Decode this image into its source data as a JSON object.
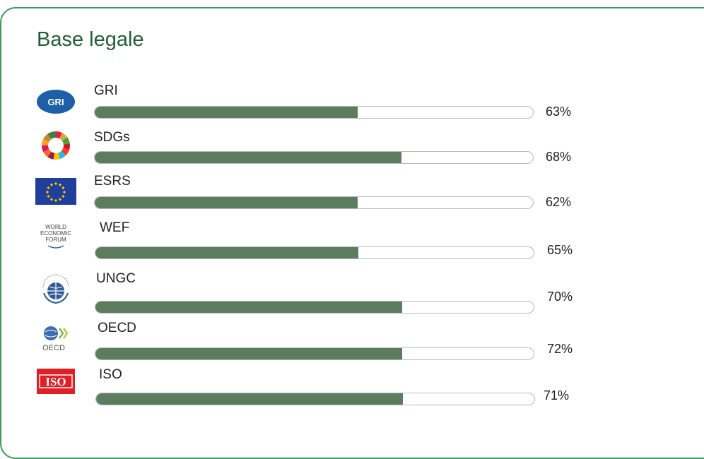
{
  "title": "Base legale",
  "logo_text": {
    "gri": "GRI",
    "wef": [
      "WORLD",
      "ECONOMIC",
      "FORUM"
    ],
    "oecd": "OECD",
    "iso": "ISO"
  },
  "rows": [
    {
      "label": "GRI",
      "percent_text": "63%",
      "value": 0.6,
      "icon": "gri-logo"
    },
    {
      "label": "SDGs",
      "percent_text": "68%",
      "value": 0.7,
      "icon": "sdgs-wheel-logo"
    },
    {
      "label": "ESRS",
      "percent_text": "62%",
      "value": 0.6,
      "icon": "eu-flag-logo"
    },
    {
      "label": "WEF",
      "percent_text": "65%",
      "value": 0.6,
      "icon": "wef-logo"
    },
    {
      "label": "UNGC",
      "percent_text": "70%",
      "value": 0.7,
      "icon": "un-global-compact-logo"
    },
    {
      "label": "OECD",
      "percent_text": "72%",
      "value": 0.7,
      "icon": "oecd-logo"
    },
    {
      "label": "ISO",
      "percent_text": "71%",
      "value": 0.7,
      "icon": "iso-logo"
    }
  ],
  "colors": {
    "border": "#3d9a55",
    "title": "#1f5e38",
    "bar_fill": "#5b7d5e",
    "bar_track_border": "#b9b9b9"
  }
}
